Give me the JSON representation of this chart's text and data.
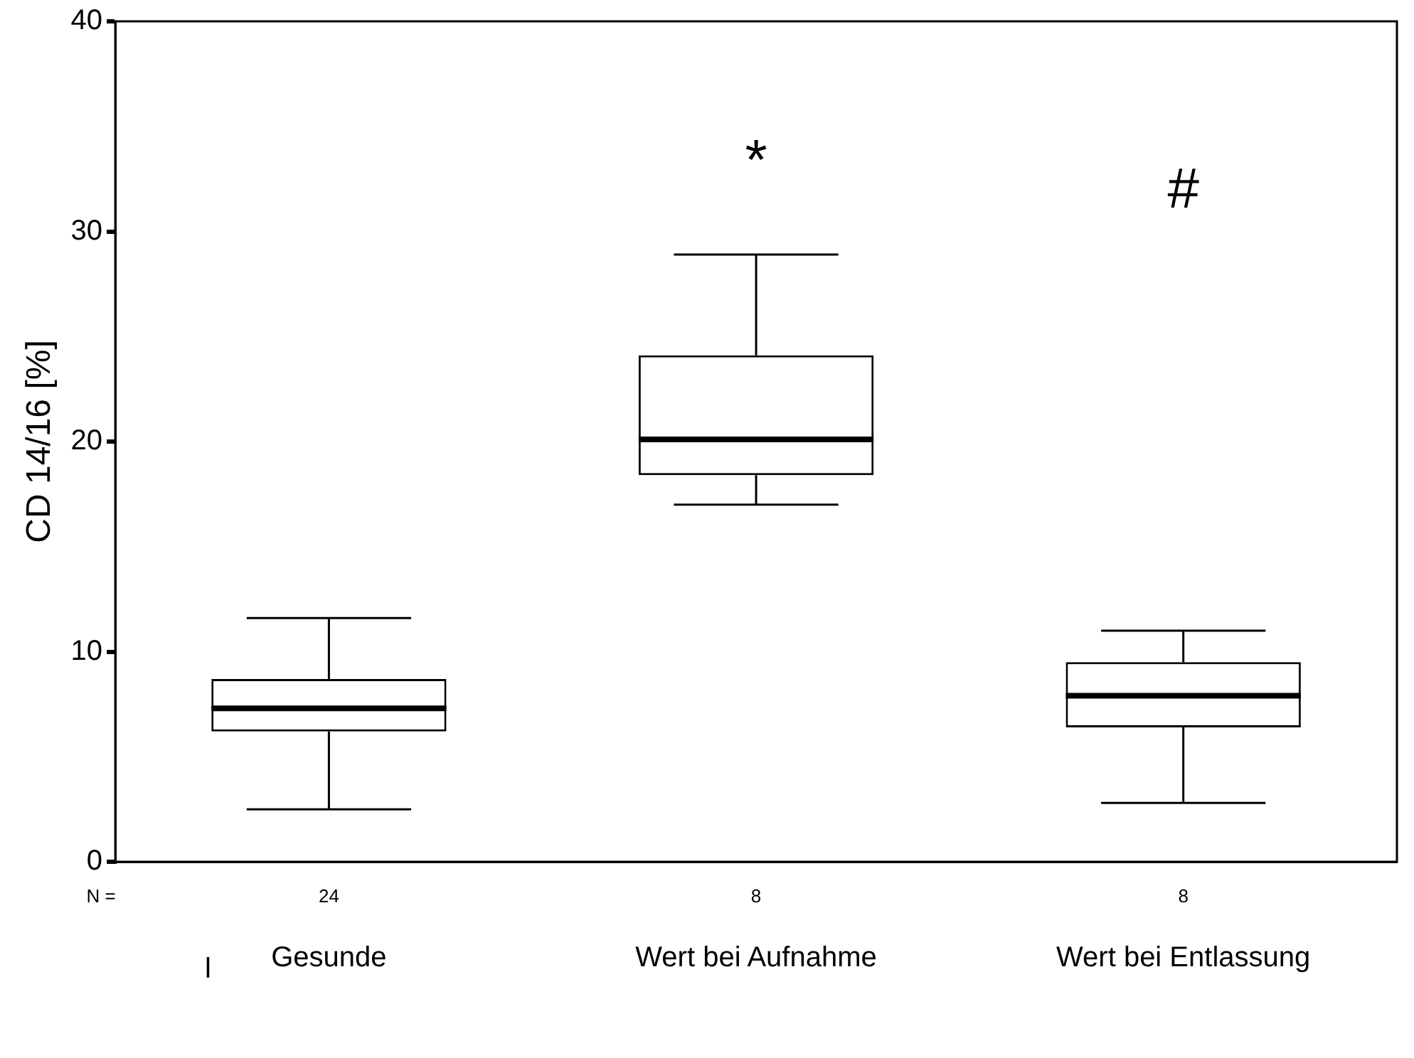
{
  "chart_data": {
    "type": "box",
    "ylabel": "CD 14/16 [%]",
    "categories": [
      "Gesunde",
      "Wert bei Aufnahme",
      "Wert bei Entlassung"
    ],
    "boxes": [
      {
        "low": 2.5,
        "q1": 6.2,
        "median": 7.3,
        "q3": 8.7,
        "high": 11.6
      },
      {
        "low": 17.0,
        "q1": 18.4,
        "median": 20.1,
        "q3": 24.1,
        "high": 28.9
      },
      {
        "low": 2.8,
        "q1": 6.4,
        "median": 7.9,
        "q3": 9.5,
        "high": 11.0
      }
    ],
    "color": "#000000",
    "ylim": [
      0,
      40
    ],
    "yticks": [
      0,
      10,
      20,
      30,
      40
    ],
    "grid": false,
    "legend": false,
    "annotations": [
      "N =",
      "24",
      "8",
      "8",
      "*",
      "#",
      "l"
    ]
  }
}
